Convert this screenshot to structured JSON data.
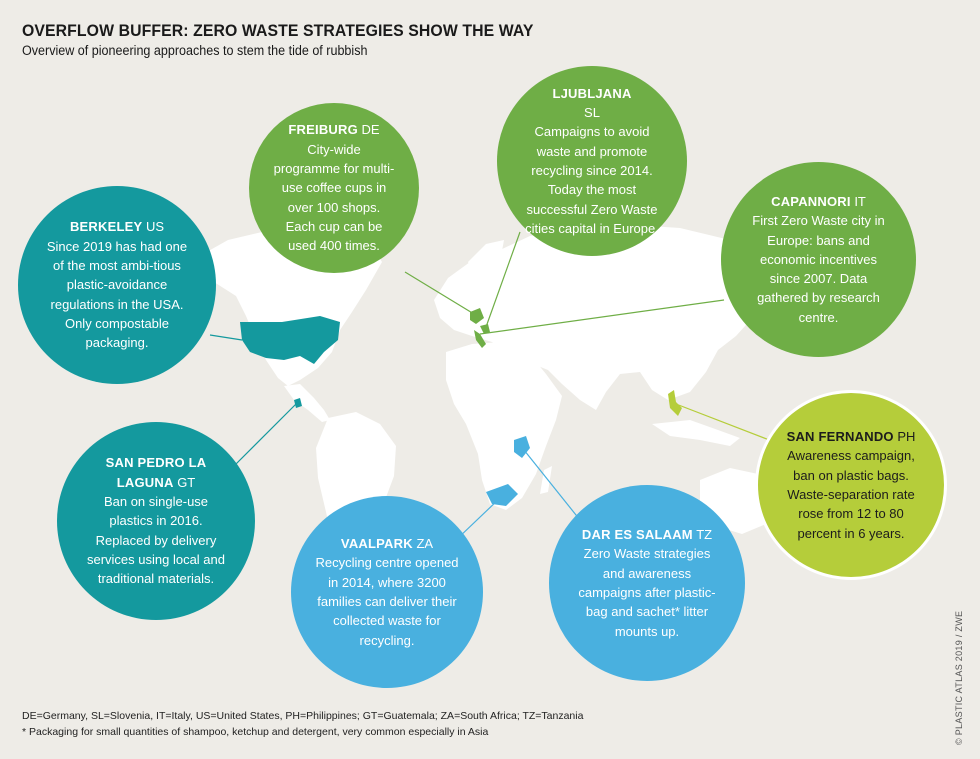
{
  "title": "OVERFLOW BUFFER: ZERO WASTE STRATEGIES SHOW THE WAY",
  "subtitle": "Overview of pioneering approaches to stem the tide of rubbish",
  "colors": {
    "background": "#eeece7",
    "land": "#ffffff",
    "teal": "#14999e",
    "green": "#6fae46",
    "blue": "#49b0df",
    "lime": "#b5cd3a"
  },
  "cities": {
    "berkeley": {
      "name": "BERKELEY",
      "code": "US",
      "text": "Since 2019 has had one of the most ambi-tious plastic-avoidance regulations in the USA. Only compostable packaging."
    },
    "freiburg": {
      "name": "FREIBURG",
      "code": "DE",
      "text": "City-wide programme for multi-use coffee cups in over 100 shops. Each cup can be used 400 times."
    },
    "ljubljana": {
      "name": "LJUBLJANA",
      "code": "SL",
      "text": "Campaigns to avoid waste and promote recycling since 2014. Today the most successful Zero Waste cities capital in Europe."
    },
    "capannori": {
      "name": "CAPANNORI",
      "code": "IT",
      "text": "First Zero Waste city in Europe: bans and economic incentives since 2007. Data gathered by research centre."
    },
    "san_fernando": {
      "name": "SAN FERNANDO",
      "code": "PH",
      "text": "Awareness campaign, ban on plastic bags. Waste-separation rate rose from 12 to 80 percent in 6 years."
    },
    "san_pedro": {
      "name": "SAN PEDRO LA LAGUNA",
      "code": "GT",
      "text": "Ban on single-use plastics in 2016. Replaced by delivery services using local and traditional materials."
    },
    "vaalpark": {
      "name": "VAALPARK",
      "code": "ZA",
      "text": "Recycling centre opened in 2014, where 3200 families can deliver their collected waste for recycling."
    },
    "dar_es_salaam": {
      "name": "DAR ES SALAAM",
      "code": "TZ",
      "text": "Zero Waste strategies and awareness campaigns after plastic-bag and sachet* litter mounts up."
    }
  },
  "footnotes": {
    "abbreviations": "DE=Germany, SL=Slovenia, IT=Italy, US=United States, PH=Philippines; GT=Guatemala; ZA=South Africa; TZ=Tanzania",
    "asterisk": "* Packaging for small quantities of shampoo, ketchup and detergent, very common especially in Asia"
  },
  "credit": "© PLASTIC ATLAS 2019 / ZWE"
}
